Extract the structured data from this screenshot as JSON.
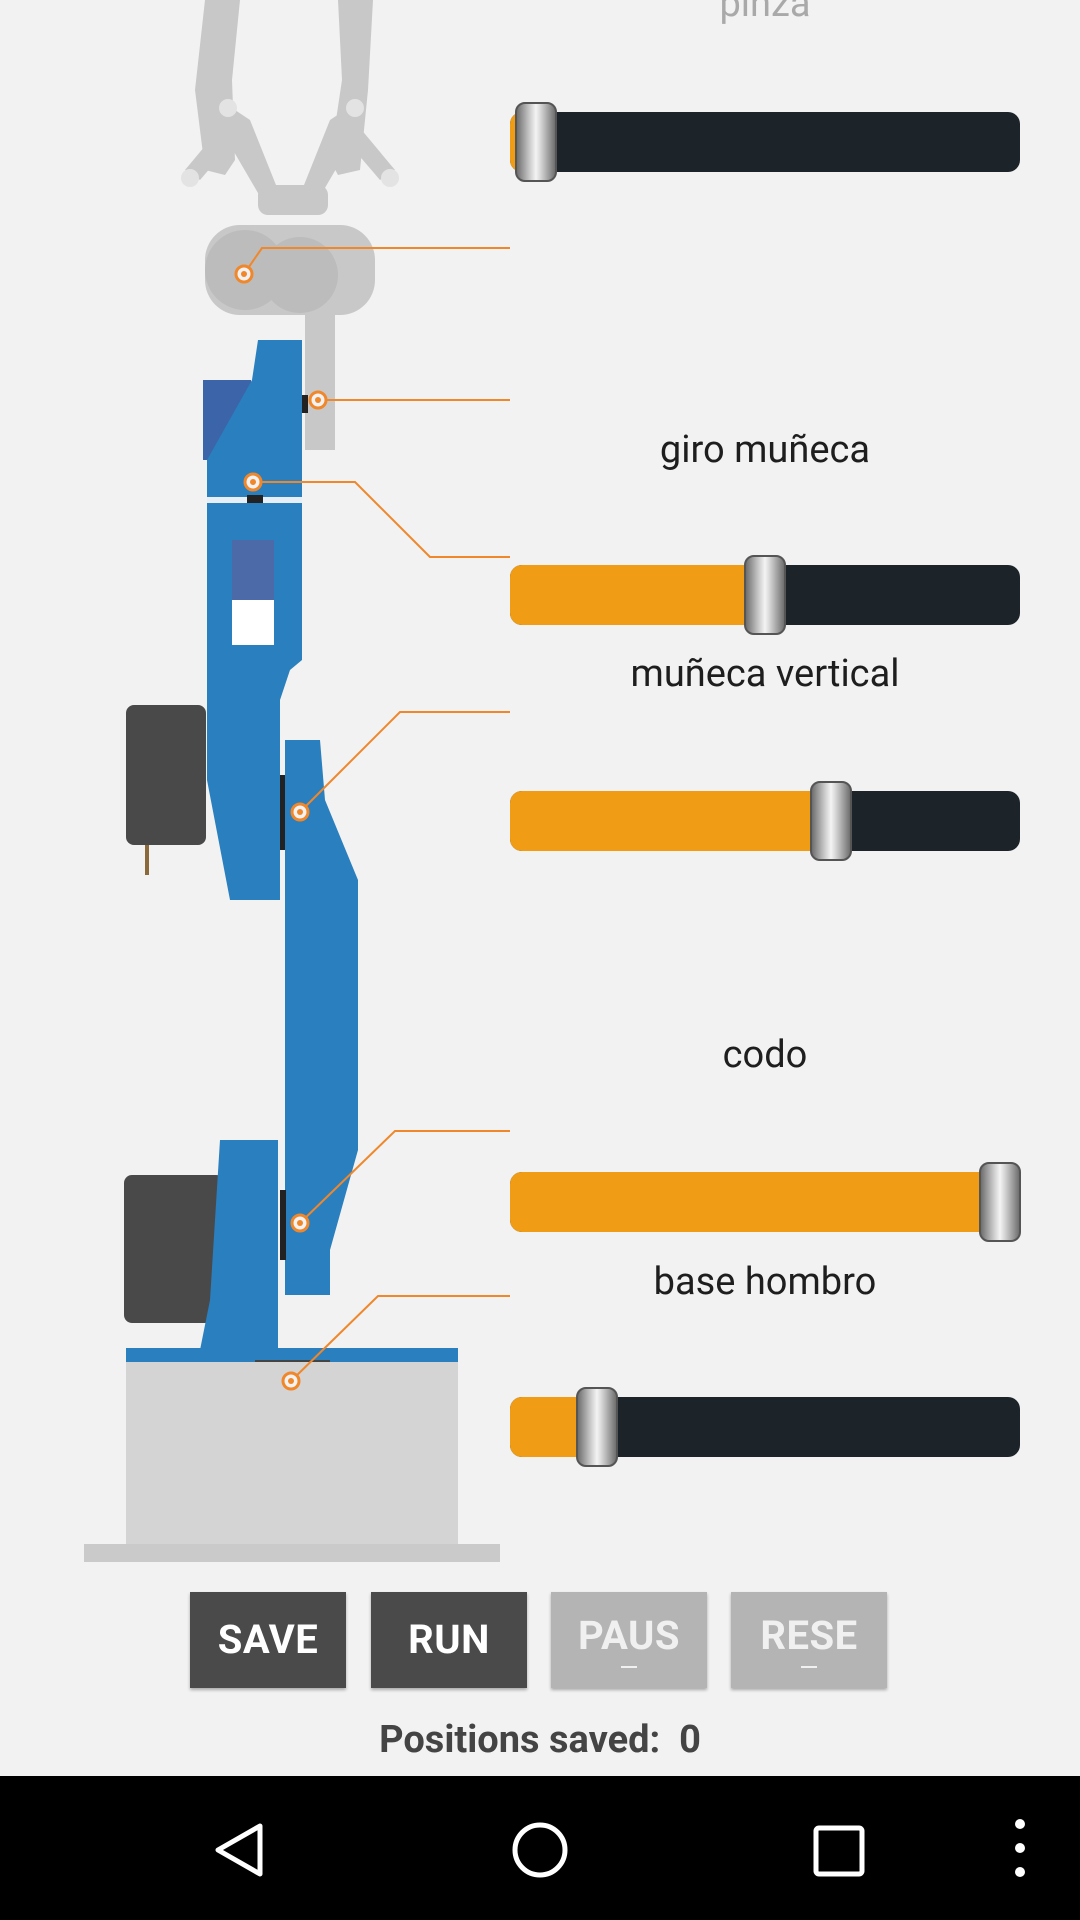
{
  "servos": [
    {
      "label": "pinza",
      "value": 0.05
    },
    {
      "label": "giro muñeca",
      "value": 0.5
    },
    {
      "label": "muñeca vertical",
      "value": 0.63
    },
    {
      "label": "codo",
      "value": 0.96
    },
    {
      "label": "base hombro",
      "value": 0.17
    }
  ],
  "buttons": {
    "save": "SAVE",
    "run": "RUN",
    "pause": "PAUS",
    "reset": "RESE"
  },
  "status": {
    "label": "Positions saved:",
    "count": "0"
  },
  "colors": {
    "background": "#f2f2f2",
    "accent": "#f09c14",
    "track": "#1c2329",
    "robot_arm": "#2a7fbe",
    "guide_lines": "#f0872a"
  },
  "icons": {
    "back": "back-triangle-icon",
    "home": "home-circle-icon",
    "recents": "recents-square-icon",
    "menu": "overflow-menu-icon"
  }
}
